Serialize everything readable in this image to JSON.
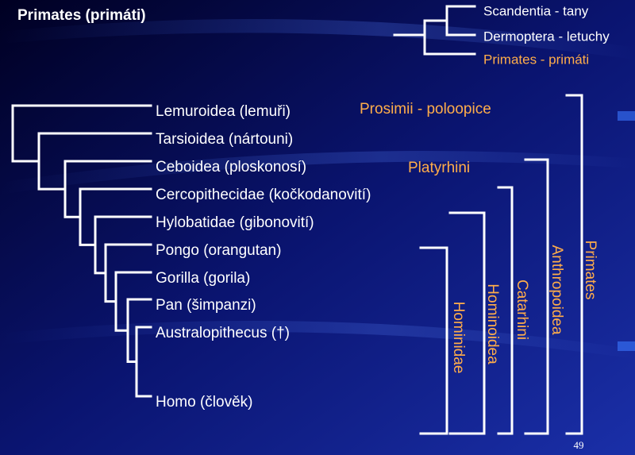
{
  "title": "Primates (primáti)",
  "outgroup_tree": {
    "labels": [
      "Scandentia - tany",
      "Dermoptera - letuchy",
      "Primates - primáti"
    ]
  },
  "cladogram": {
    "taxa": [
      "Lemuroidea (lemuři)",
      "Tarsioidea (nártouni)",
      "Ceboidea (ploskonosí)",
      "Cercopithecidae (kočkodanovití)",
      "Hylobatidae (gibonovití)",
      "Pongo (orangutan)",
      "Gorilla (gorila)",
      "Pan (šimpanzi)",
      "Australopithecus (†)",
      "Homo (člověk)"
    ]
  },
  "groups": {
    "prosimii": "Prosimii - poloopice",
    "platyrhini": "Platyrhini",
    "hominidae": "Hominidae",
    "hominoidea": "Hominoidea",
    "catarhini": "Catarhini",
    "anthropoidea": "Anthropoidea",
    "primates": "Primates"
  },
  "page_number": "49"
}
